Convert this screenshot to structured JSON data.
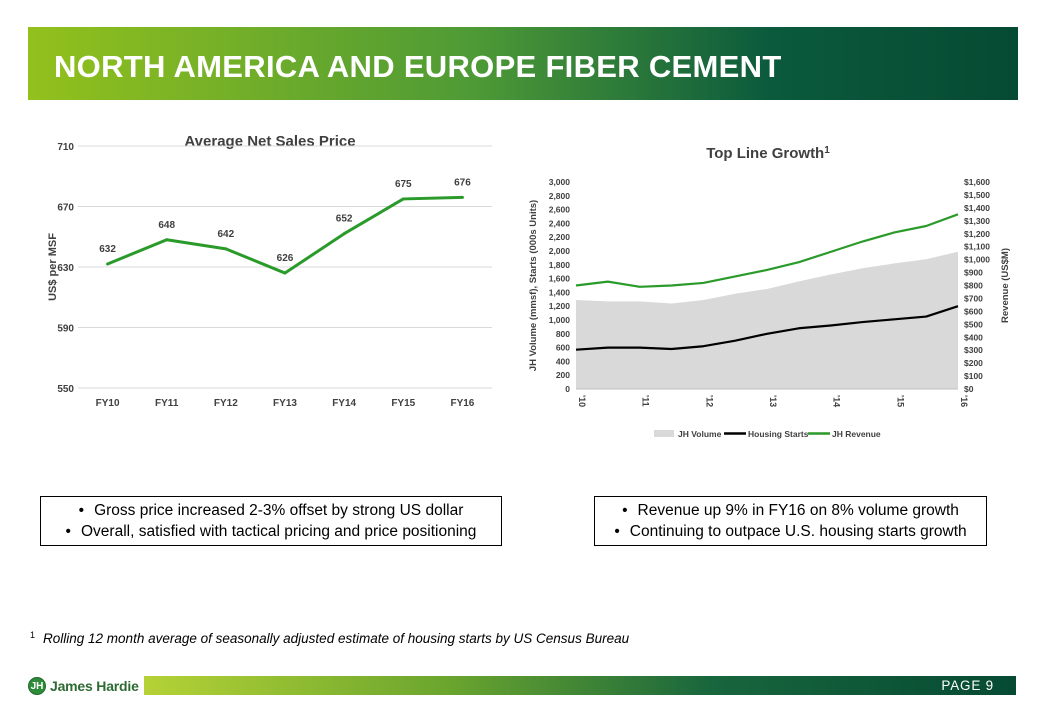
{
  "header": {
    "title": "NORTH AMERICA AND EUROPE FIBER CEMENT"
  },
  "chart_data": [
    {
      "type": "line",
      "title": "Average Net Sales Price",
      "ylabel": "US$ per MSF",
      "xlabel": "",
      "categories": [
        "FY10",
        "FY11",
        "FY12",
        "FY13",
        "FY14",
        "FY15",
        "FY16"
      ],
      "values": [
        632,
        648,
        642,
        626,
        652,
        675,
        676
      ],
      "data_labels": [
        "632",
        "648",
        "642",
        "626",
        "652",
        "675",
        "676"
      ],
      "ylim": [
        550,
        710
      ],
      "yticks": [
        "550",
        "590",
        "630",
        "670",
        "710"
      ],
      "grid": true,
      "color": "#2a9a2a"
    },
    {
      "type": "line",
      "title": "Top Line Growth",
      "title_superscript": "1",
      "ylabel": "JH Volume (mmsf),  Starts (000s Units)",
      "y2label": "Revenue (US$M)",
      "xticks": [
        "'10",
        "'11",
        "'12",
        "'13",
        "'14",
        "'15",
        "'16"
      ],
      "ylim": [
        0,
        3000
      ],
      "y2lim": [
        0,
        1600
      ],
      "yticks": [
        "0",
        "200",
        "400",
        "600",
        "800",
        "1,000",
        "1,200",
        "1,400",
        "1,600",
        "1,800",
        "2,000",
        "2,200",
        "2,400",
        "2,600",
        "2,800",
        "3,000"
      ],
      "y2ticks": [
        "$0",
        "$100",
        "$200",
        "$300",
        "$400",
        "$500",
        "$600",
        "$700",
        "$800",
        "$900",
        "$1,000",
        "$1,100",
        "$1,200",
        "$1,300",
        "$1,400",
        "$1,500",
        "$1,600"
      ],
      "legend_position": "bottom",
      "x": [
        2010.0,
        2010.5,
        2011.0,
        2011.5,
        2012.0,
        2012.5,
        2013.0,
        2013.5,
        2014.0,
        2014.5,
        2015.0,
        2015.5,
        2016.0
      ],
      "series": [
        {
          "name": "JH Volume",
          "kind": "area",
          "axis": "left",
          "color": "#d9d9d9",
          "values": [
            1290,
            1270,
            1270,
            1240,
            1290,
            1380,
            1450,
            1560,
            1660,
            1750,
            1820,
            1880,
            1990
          ]
        },
        {
          "name": "Housing Starts",
          "kind": "line",
          "axis": "left",
          "color": "#000000",
          "values": [
            570,
            600,
            600,
            580,
            620,
            700,
            800,
            880,
            920,
            970,
            1010,
            1050,
            1200
          ]
        },
        {
          "name": "JH Revenue",
          "kind": "line",
          "axis": "right",
          "color": "#2a9a2a",
          "values": [
            800,
            830,
            790,
            800,
            820,
            870,
            920,
            980,
            1060,
            1140,
            1210,
            1260,
            1350
          ]
        }
      ]
    }
  ],
  "callouts": {
    "left": [
      "Gross price increased 2-3% offset by strong US dollar",
      "Overall, satisfied with tactical pricing and price positioning"
    ],
    "right": [
      "Revenue up 9% in FY16 on 8% volume growth",
      "Continuing to outpace U.S. housing starts growth"
    ]
  },
  "footnote": {
    "marker": "1",
    "text": "Rolling 12 month average of seasonally adjusted estimate of housing starts by US Census Bureau"
  },
  "footer": {
    "page_label": "PAGE   9",
    "logo_text": "James Hardie",
    "logo_mark": "JH"
  }
}
